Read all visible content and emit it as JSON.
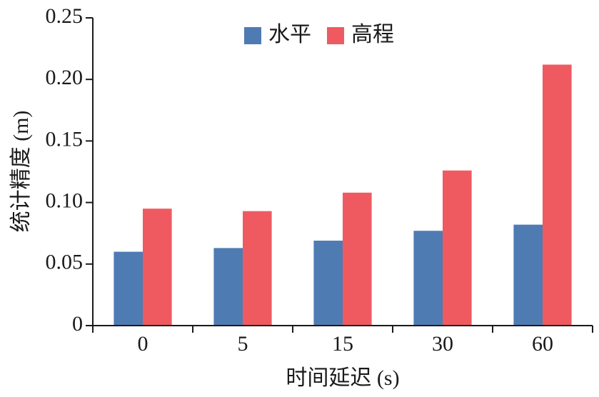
{
  "chart_data": {
    "type": "bar",
    "categories": [
      "0",
      "5",
      "15",
      "30",
      "60"
    ],
    "series": [
      {
        "name": "水平",
        "color": "#4f7bb3",
        "values": [
          0.06,
          0.063,
          0.069,
          0.077,
          0.082
        ]
      },
      {
        "name": "高程",
        "color": "#ef5a61",
        "values": [
          0.095,
          0.093,
          0.108,
          0.126,
          0.212
        ]
      }
    ],
    "xlabel": "时间延迟 (s)",
    "ylabel": "统计精度 (m)",
    "ylim": [
      0,
      0.25
    ],
    "yticks": [
      "0",
      "0.05",
      "0.10",
      "0.15",
      "0.20",
      "0.25"
    ],
    "legend_position": "top-center",
    "grid": false
  }
}
